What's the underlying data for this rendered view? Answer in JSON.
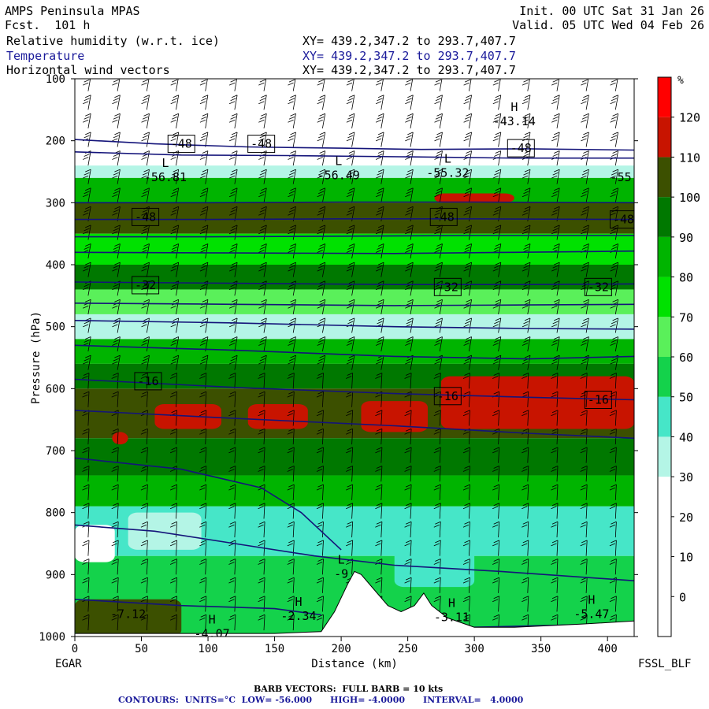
{
  "header": {
    "model": "AMPS Peninsula MPAS",
    "fcst": "Fcst.  101 h",
    "init": "Init. 00 UTC Sat 31 Jan 26",
    "valid": "Valid. 05 UTC Wed 04 Feb 26",
    "fields": [
      {
        "name": "Relative humidity (w.r.t. ice)",
        "xy": "XY= 439.2,347.2 to 293.7,407.7",
        "color": "#000000"
      },
      {
        "name": "Temperature",
        "xy": "XY= 439.2,347.2 to 293.7,407.7",
        "color": "#1a1a9a"
      },
      {
        "name": "Horizontal wind vectors",
        "xy": "XY= 439.2,347.2 to 293.7,407.7",
        "color": "#000000"
      }
    ]
  },
  "footer": {
    "barb": "BARB VECTORS:  FULL BARB = 10 kts",
    "contours": "CONTOURS:  UNITS=°C  LOW= -56.000      HIGH= -4.0000      INTERVAL=   4.0000"
  },
  "chart_data": {
    "type": "heatmap",
    "xlabel": "Distance (km)",
    "ylabel": "Pressure (hPa)",
    "xlim": [
      0,
      420
    ],
    "ylim": [
      1000,
      100
    ],
    "xticks": [
      0,
      50,
      100,
      150,
      200,
      250,
      300,
      350,
      400
    ],
    "yticks": [
      100,
      200,
      300,
      400,
      500,
      600,
      700,
      800,
      900,
      1000
    ],
    "left_endpoint": "EGAR",
    "right_endpoint": "FSSL_BLF",
    "colorbar": {
      "unit": "%",
      "ticks": [
        0,
        10,
        20,
        30,
        40,
        50,
        60,
        70,
        80,
        90,
        100,
        110,
        120
      ],
      "bins": [
        {
          "lo": -10,
          "hi": 0,
          "color": "#ffffff"
        },
        {
          "lo": 0,
          "hi": 10,
          "color": "#ffffff"
        },
        {
          "lo": 10,
          "hi": 20,
          "color": "#ffffff"
        },
        {
          "lo": 20,
          "hi": 30,
          "color": "#ffffff"
        },
        {
          "lo": 30,
          "hi": 40,
          "color": "#b4f5e6"
        },
        {
          "lo": 40,
          "hi": 50,
          "color": "#46e6c8"
        },
        {
          "lo": 50,
          "hi": 60,
          "color": "#14d24b"
        },
        {
          "lo": 60,
          "hi": 70,
          "color": "#5af05a"
        },
        {
          "lo": 70,
          "hi": 80,
          "color": "#00e100"
        },
        {
          "lo": 80,
          "hi": 90,
          "color": "#00b400"
        },
        {
          "lo": 90,
          "hi": 100,
          "color": "#007800"
        },
        {
          "lo": 100,
          "hi": 110,
          "color": "#3c5000"
        },
        {
          "lo": 110,
          "hi": 120,
          "color": "#c81400"
        },
        {
          "lo": 120,
          "hi": 130,
          "color": "#ff0000"
        }
      ]
    },
    "rh_layers": [
      {
        "top": 100,
        "bottom": 240,
        "color": "#ffffff"
      },
      {
        "top": 240,
        "bottom": 260,
        "color": "#b4f5e6"
      },
      {
        "top": 260,
        "bottom": 300,
        "color": "#00b400"
      },
      {
        "top": 300,
        "bottom": 350,
        "color": "#3c5000"
      },
      {
        "top": 350,
        "bottom": 400,
        "color": "#00e100"
      },
      {
        "top": 400,
        "bottom": 440,
        "color": "#007800"
      },
      {
        "top": 440,
        "bottom": 480,
        "color": "#5af05a"
      },
      {
        "top": 480,
        "bottom": 520,
        "color": "#b4f5e6"
      },
      {
        "top": 520,
        "bottom": 560,
        "color": "#00b400"
      },
      {
        "top": 560,
        "bottom": 600,
        "color": "#007800"
      },
      {
        "top": 600,
        "bottom": 680,
        "color": "#3c5000"
      },
      {
        "top": 680,
        "bottom": 740,
        "color": "#007800"
      },
      {
        "top": 740,
        "bottom": 790,
        "color": "#00b400"
      },
      {
        "top": 790,
        "bottom": 870,
        "color": "#46e6c8"
      },
      {
        "top": 870,
        "bottom": 1000,
        "color": "#14d24b"
      }
    ],
    "rh_patches": [
      {
        "x0": 270,
        "x1": 330,
        "p0": 285,
        "p1": 300,
        "color": "#c81400"
      },
      {
        "x0": 60,
        "x1": 110,
        "p0": 625,
        "p1": 665,
        "color": "#c81400"
      },
      {
        "x0": 130,
        "x1": 175,
        "p0": 625,
        "p1": 665,
        "color": "#c81400"
      },
      {
        "x0": 215,
        "x1": 265,
        "p0": 620,
        "p1": 670,
        "color": "#c81400"
      },
      {
        "x0": 275,
        "x1": 420,
        "p0": 580,
        "p1": 665,
        "color": "#c81400"
      },
      {
        "x0": 28,
        "x1": 40,
        "p0": 670,
        "p1": 690,
        "color": "#c81400"
      },
      {
        "x0": 0,
        "x1": 30,
        "p0": 820,
        "p1": 880,
        "color": "#ffffff"
      },
      {
        "x0": 40,
        "x1": 95,
        "p0": 800,
        "p1": 860,
        "color": "#b4f5e6"
      },
      {
        "x0": 240,
        "x1": 300,
        "p0": 850,
        "p1": 920,
        "color": "#46e6c8"
      },
      {
        "x0": 0,
        "x1": 80,
        "p0": 940,
        "p1": 1000,
        "color": "#3c5000"
      }
    ],
    "terrain": [
      [
        0,
        995
      ],
      [
        150,
        995
      ],
      [
        185,
        992
      ],
      [
        195,
        960
      ],
      [
        205,
        915
      ],
      [
        210,
        895
      ],
      [
        215,
        900
      ],
      [
        225,
        925
      ],
      [
        235,
        950
      ],
      [
        245,
        960
      ],
      [
        255,
        950
      ],
      [
        262,
        930
      ],
      [
        268,
        950
      ],
      [
        280,
        970
      ],
      [
        300,
        985
      ],
      [
        330,
        985
      ],
      [
        380,
        980
      ],
      [
        420,
        975
      ]
    ],
    "temperature_contours": [
      {
        "points": [
          [
            0,
            198
          ],
          [
            60,
            205
          ],
          [
            130,
            210
          ],
          [
            200,
            212
          ],
          [
            260,
            214
          ],
          [
            340,
            213
          ],
          [
            420,
            215
          ]
        ]
      },
      {
        "points": [
          [
            0,
            218
          ],
          [
            80,
            223
          ],
          [
            160,
            224
          ],
          [
            250,
            226
          ],
          [
            330,
            228
          ],
          [
            420,
            228
          ]
        ]
      },
      {
        "points": [
          [
            0,
            300
          ],
          [
            100,
            300
          ],
          [
            200,
            299
          ],
          [
            300,
            299
          ],
          [
            420,
            300
          ]
        ]
      },
      {
        "points": [
          [
            0,
            327
          ],
          [
            100,
            327
          ],
          [
            200,
            326
          ],
          [
            300,
            326
          ],
          [
            420,
            327
          ]
        ]
      },
      {
        "points": [
          [
            0,
            355
          ],
          [
            100,
            355
          ],
          [
            200,
            354
          ],
          [
            300,
            353
          ],
          [
            420,
            353
          ]
        ]
      },
      {
        "points": [
          [
            0,
            380
          ],
          [
            120,
            381
          ],
          [
            240,
            382
          ],
          [
            330,
            380
          ],
          [
            420,
            378
          ]
        ]
      },
      {
        "points": [
          [
            0,
            428
          ],
          [
            120,
            430
          ],
          [
            240,
            432
          ],
          [
            340,
            432
          ],
          [
            420,
            431
          ]
        ]
      },
      {
        "points": [
          [
            0,
            462
          ],
          [
            120,
            464
          ],
          [
            240,
            466
          ],
          [
            340,
            465
          ],
          [
            420,
            464
          ]
        ]
      },
      {
        "points": [
          [
            0,
            490
          ],
          [
            120,
            494
          ],
          [
            240,
            500
          ],
          [
            340,
            503
          ],
          [
            420,
            504
          ]
        ]
      },
      {
        "points": [
          [
            0,
            530
          ],
          [
            120,
            538
          ],
          [
            240,
            548
          ],
          [
            340,
            552
          ],
          [
            420,
            548
          ]
        ]
      },
      {
        "points": [
          [
            0,
            585
          ],
          [
            120,
            598
          ],
          [
            240,
            608
          ],
          [
            340,
            614
          ],
          [
            420,
            618
          ]
        ]
      },
      {
        "points": [
          [
            0,
            635
          ],
          [
            120,
            648
          ],
          [
            240,
            660
          ],
          [
            340,
            672
          ],
          [
            420,
            680
          ]
        ]
      },
      {
        "points": [
          [
            0,
            712
          ],
          [
            80,
            730
          ],
          [
            140,
            760
          ],
          [
            170,
            800
          ],
          [
            200,
            860
          ]
        ]
      },
      {
        "points": [
          [
            0,
            820
          ],
          [
            60,
            830
          ],
          [
            120,
            850
          ],
          [
            180,
            870
          ],
          [
            240,
            885
          ],
          [
            320,
            895
          ],
          [
            420,
            910
          ]
        ]
      },
      {
        "points": [
          [
            0,
            940
          ],
          [
            80,
            950
          ],
          [
            150,
            955
          ],
          [
            185,
            965
          ]
        ]
      },
      {
        "points": [
          [
            300,
            985
          ],
          [
            360,
            982
          ],
          [
            420,
            978
          ]
        ]
      }
    ],
    "contour_labels": [
      {
        "x": 80,
        "p": 205,
        "text": "-48"
      },
      {
        "x": 140,
        "p": 205,
        "text": "-48"
      },
      {
        "x": 335,
        "p": 212,
        "text": "-48"
      },
      {
        "x": 53,
        "p": 323,
        "text": "-48"
      },
      {
        "x": 277,
        "p": 323,
        "text": "-48"
      },
      {
        "x": 412,
        "p": 327,
        "text": "-48"
      },
      {
        "x": 53,
        "p": 433,
        "text": "-32"
      },
      {
        "x": 280,
        "p": 436,
        "text": "-32"
      },
      {
        "x": 393,
        "p": 436,
        "text": "-32"
      },
      {
        "x": 55,
        "p": 588,
        "text": "-16"
      },
      {
        "x": 280,
        "p": 612,
        "text": "-16"
      },
      {
        "x": 393,
        "p": 618,
        "text": "-16"
      }
    ],
    "extrema": [
      {
        "x": 68,
        "p": 255,
        "mark": "L",
        "value": "-56.81"
      },
      {
        "x": 198,
        "p": 252,
        "mark": "L",
        "value": "-56.49"
      },
      {
        "x": 280,
        "p": 248,
        "mark": "L",
        "value": "-55.32"
      },
      {
        "x": 330,
        "p": 165,
        "mark": "H",
        "value": "-43.14"
      },
      {
        "x": 410,
        "p": 255,
        "mark": "",
        "value": "-55"
      },
      {
        "x": 200,
        "p": 895,
        "mark": "L",
        "value": "-9"
      },
      {
        "x": 168,
        "p": 963,
        "mark": "H",
        "value": "-2.34"
      },
      {
        "x": 283,
        "p": 965,
        "mark": "H",
        "value": "-3.11"
      },
      {
        "x": 388,
        "p": 960,
        "mark": "H",
        "value": "-5.47"
      },
      {
        "x": 40,
        "p": 960,
        "mark": "",
        "value": "-7.12"
      },
      {
        "x": 103,
        "p": 992,
        "mark": "H",
        "value": "-4.07"
      }
    ]
  }
}
